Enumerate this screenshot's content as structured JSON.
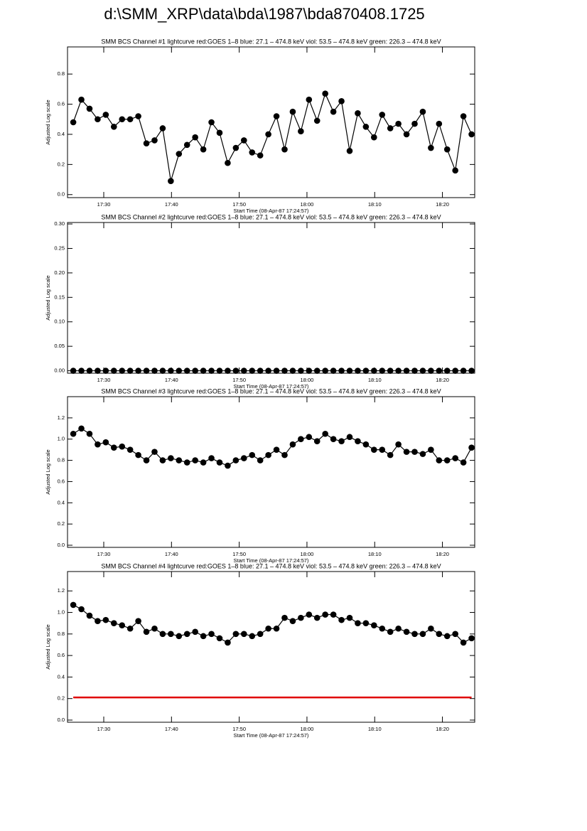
{
  "title": "d:\\SMM_XRP\\data\\bda\\1987\\bda870408.1725",
  "chart_data": [
    {
      "type": "line",
      "title": "SMM BCS Channel #1 lightcurve  red:GOES 1–8  blue: 27.1 – 474.8 keV  viol: 53.5 – 474.8 keV  green: 226.3 – 474.8 keV",
      "xlabel": "Start Time (08-Apr-87 17:24:57)",
      "ylabel": "Adjusted Log scale",
      "x": [
        "17:25:30",
        "17:26:42",
        "17:27:54",
        "17:29:06",
        "17:30:18",
        "17:31:30",
        "17:32:42",
        "17:33:54",
        "17:35:06",
        "17:36:18",
        "17:37:30",
        "17:38:42",
        "17:39:54",
        "17:41:06",
        "17:42:18",
        "17:43:30",
        "17:44:42",
        "17:45:54",
        "17:47:06",
        "17:48:18",
        "17:49:30",
        "17:50:42",
        "17:51:54",
        "17:53:06",
        "17:54:18",
        "17:55:30",
        "17:56:42",
        "17:57:54",
        "17:59:06",
        "18:00:18",
        "18:01:30",
        "18:02:42",
        "18:03:54",
        "18:05:06",
        "18:06:18",
        "18:07:30",
        "18:08:42",
        "18:09:54",
        "18:11:06",
        "18:12:18",
        "18:13:30",
        "18:14:42",
        "18:15:54",
        "18:17:06",
        "18:18:18",
        "18:19:30",
        "18:20:42",
        "18:21:54",
        "18:23:06",
        "18:24:18"
      ],
      "series": [
        {
          "color": "#000000",
          "marker": true,
          "values": [
            0.48,
            0.63,
            0.57,
            0.5,
            0.53,
            0.45,
            0.5,
            0.5,
            0.52,
            0.34,
            0.36,
            0.44,
            0.09,
            0.27,
            0.33,
            0.38,
            0.3,
            0.48,
            0.41,
            0.21,
            0.31,
            0.36,
            0.28,
            0.26,
            0.4,
            0.52,
            0.3,
            0.55,
            0.42,
            0.63,
            0.49,
            0.67,
            0.55,
            0.62,
            0.29,
            0.54,
            0.45,
            0.38,
            0.53,
            0.44,
            0.47,
            0.4,
            0.47,
            0.55,
            0.31,
            0.47,
            0.3,
            0.16,
            0.52,
            0.4
          ]
        }
      ],
      "xlim": [
        "17:24:39",
        "18:24:46"
      ],
      "xticks": [
        "17:30",
        "17:40",
        "17:50",
        "18:00",
        "18:10",
        "18:20"
      ],
      "ylim": [
        -0.02,
        0.98
      ],
      "yticks": [
        {
          "value": 0,
          "label": "0.0"
        },
        0.2,
        0.4,
        0.6,
        0.8
      ]
    },
    {
      "type": "line",
      "title": "SMM BCS Channel #2 lightcurve  red:GOES 1–8  blue: 27.1 – 474.8 keV  viol: 53.5 – 474.8 keV  green: 226.3 – 474.8 keV",
      "xlabel": "Start Time (08-Apr-87 17:24:57)",
      "ylabel": "Adjusted Log scale",
      "x": [
        "17:25:30",
        "17:26:42",
        "17:27:54",
        "17:29:06",
        "17:30:18",
        "17:31:30",
        "17:32:42",
        "17:33:54",
        "17:35:06",
        "17:36:18",
        "17:37:30",
        "17:38:42",
        "17:39:54",
        "17:41:06",
        "17:42:18",
        "17:43:30",
        "17:44:42",
        "17:45:54",
        "17:47:06",
        "17:48:18",
        "17:49:30",
        "17:50:42",
        "17:51:54",
        "17:53:06",
        "17:54:18",
        "17:55:30",
        "17:56:42",
        "17:57:54",
        "17:59:06",
        "18:00:18",
        "18:01:30",
        "18:02:42",
        "18:03:54",
        "18:05:06",
        "18:06:18",
        "18:07:30",
        "18:08:42",
        "18:09:54",
        "18:11:06",
        "18:12:18",
        "18:13:30",
        "18:14:42",
        "18:15:54",
        "18:17:06",
        "18:18:18",
        "18:19:30",
        "18:20:42",
        "18:21:54",
        "18:23:06",
        "18:24:18"
      ],
      "series": [
        {
          "color": "#000000",
          "marker": true,
          "values": [
            0,
            0,
            0,
            0,
            0,
            0,
            0,
            0,
            0,
            0,
            0,
            0,
            0,
            0,
            0,
            0,
            0,
            0,
            0,
            0,
            0,
            0,
            0,
            0,
            0,
            0,
            0,
            0,
            0,
            0,
            0,
            0,
            0,
            0,
            0,
            0,
            0,
            0,
            0,
            0,
            0,
            0,
            0,
            0,
            0,
            0,
            0,
            0,
            0,
            0
          ]
        }
      ],
      "xlim": [
        "17:24:39",
        "18:24:46"
      ],
      "xticks": [
        "17:30",
        "17:40",
        "17:50",
        "18:00",
        "18:10",
        "18:20"
      ],
      "ylim": [
        -0.005,
        0.303
      ],
      "yticks": [
        {
          "value": 0,
          "label": "0.00"
        },
        0.05,
        {
          "value": 0.1,
          "label": "0.10"
        },
        0.15,
        {
          "value": 0.2,
          "label": "0.20"
        },
        0.25,
        {
          "value": 0.3,
          "label": "0.30"
        }
      ]
    },
    {
      "type": "line",
      "title": "SMM BCS Channel #3 lightcurve  red:GOES 1–8  blue: 27.1 – 474.8 keV  viol: 53.5 – 474.8 keV  green: 226.3 – 474.8 keV",
      "xlabel": "Start Time (08-Apr-87 17:24:57)",
      "ylabel": "Adjusted Log scale",
      "x": [
        "17:25:30",
        "17:26:42",
        "17:27:54",
        "17:29:06",
        "17:30:18",
        "17:31:30",
        "17:32:42",
        "17:33:54",
        "17:35:06",
        "17:36:18",
        "17:37:30",
        "17:38:42",
        "17:39:54",
        "17:41:06",
        "17:42:18",
        "17:43:30",
        "17:44:42",
        "17:45:54",
        "17:47:06",
        "17:48:18",
        "17:49:30",
        "17:50:42",
        "17:51:54",
        "17:53:06",
        "17:54:18",
        "17:55:30",
        "17:56:42",
        "17:57:54",
        "17:59:06",
        "18:00:18",
        "18:01:30",
        "18:02:42",
        "18:03:54",
        "18:05:06",
        "18:06:18",
        "18:07:30",
        "18:08:42",
        "18:09:54",
        "18:11:06",
        "18:12:18",
        "18:13:30",
        "18:14:42",
        "18:15:54",
        "18:17:06",
        "18:18:18",
        "18:19:30",
        "18:20:42",
        "18:21:54",
        "18:23:06",
        "18:24:18"
      ],
      "series": [
        {
          "color": "#000000",
          "marker": true,
          "values": [
            1.05,
            1.1,
            1.05,
            0.95,
            0.97,
            0.92,
            0.93,
            0.9,
            0.85,
            0.8,
            0.88,
            0.8,
            0.82,
            0.8,
            0.78,
            0.8,
            0.78,
            0.82,
            0.78,
            0.75,
            0.8,
            0.82,
            0.85,
            0.8,
            0.85,
            0.9,
            0.85,
            0.95,
            1.0,
            1.02,
            0.98,
            1.05,
            1.0,
            0.98,
            1.02,
            0.98,
            0.95,
            0.9,
            0.9,
            0.85,
            0.95,
            0.88,
            0.88,
            0.86,
            0.9,
            0.8,
            0.8,
            0.82,
            0.78,
            0.92
          ]
        }
      ],
      "xlim": [
        "17:24:39",
        "18:24:46"
      ],
      "xticks": [
        "17:30",
        "17:40",
        "17:50",
        "18:00",
        "18:10",
        "18:20"
      ],
      "ylim": [
        -0.02,
        1.4
      ],
      "yticks": [
        {
          "value": 0,
          "label": "0.0"
        },
        0.2,
        0.4,
        0.6,
        0.8,
        {
          "value": 1,
          "label": "1.0"
        },
        1.2
      ]
    },
    {
      "type": "line",
      "title": "SMM BCS Channel #4 lightcurve  red:GOES 1–8  blue: 27.1 – 474.8 keV  viol: 53.5 – 474.8 keV  green: 226.3 – 474.8 keV",
      "xlabel": "Start Time (08-Apr-87 17:24:57)",
      "ylabel": "Adjusted Log scale",
      "x": [
        "17:25:30",
        "17:26:42",
        "17:27:54",
        "17:29:06",
        "17:30:18",
        "17:31:30",
        "17:32:42",
        "17:33:54",
        "17:35:06",
        "17:36:18",
        "17:37:30",
        "17:38:42",
        "17:39:54",
        "17:41:06",
        "17:42:18",
        "17:43:30",
        "17:44:42",
        "17:45:54",
        "17:47:06",
        "17:48:18",
        "17:49:30",
        "17:50:42",
        "17:51:54",
        "17:53:06",
        "17:54:18",
        "17:55:30",
        "17:56:42",
        "17:57:54",
        "17:59:06",
        "18:00:18",
        "18:01:30",
        "18:02:42",
        "18:03:54",
        "18:05:06",
        "18:06:18",
        "18:07:30",
        "18:08:42",
        "18:09:54",
        "18:11:06",
        "18:12:18",
        "18:13:30",
        "18:14:42",
        "18:15:54",
        "18:17:06",
        "18:18:18",
        "18:19:30",
        "18:20:42",
        "18:21:54",
        "18:23:06",
        "18:24:18"
      ],
      "series": [
        {
          "color": "#000000",
          "marker": true,
          "values": [
            1.07,
            1.03,
            0.97,
            0.92,
            0.93,
            0.9,
            0.88,
            0.85,
            0.92,
            0.82,
            0.85,
            0.8,
            0.8,
            0.78,
            0.8,
            0.82,
            0.78,
            0.8,
            0.76,
            0.72,
            0.8,
            0.8,
            0.78,
            0.8,
            0.85,
            0.85,
            0.95,
            0.92,
            0.95,
            0.98,
            0.95,
            0.98,
            0.98,
            0.93,
            0.95,
            0.9,
            0.9,
            0.88,
            0.85,
            0.82,
            0.85,
            0.82,
            0.8,
            0.8,
            0.85,
            0.8,
            0.78,
            0.8,
            0.72,
            0.76
          ]
        },
        {
          "color": "#e00000",
          "marker": false,
          "values": [
            0.21,
            0.21,
            0.21,
            0.21,
            0.21,
            0.21,
            0.21,
            0.21,
            0.21,
            0.21,
            0.21,
            0.21,
            0.21,
            0.21,
            0.21,
            0.21,
            0.21,
            0.21,
            0.21,
            0.21,
            0.21,
            0.21,
            0.21,
            0.21,
            0.21,
            0.21,
            0.21,
            0.21,
            0.21,
            0.21,
            0.21,
            0.21,
            0.21,
            0.21,
            0.21,
            0.21,
            0.21,
            0.21,
            0.21,
            0.21,
            0.21,
            0.21,
            0.21,
            0.21,
            0.21,
            0.21,
            0.21,
            0.21,
            0.21,
            0.21
          ]
        }
      ],
      "xlim": [
        "17:24:39",
        "18:24:46"
      ],
      "xticks": [
        "17:30",
        "17:40",
        "17:50",
        "18:00",
        "18:10",
        "18:20"
      ],
      "ylim": [
        -0.02,
        1.38
      ],
      "yticks": [
        {
          "value": 0,
          "label": "0.0"
        },
        0.2,
        0.4,
        0.6,
        0.8,
        {
          "value": 1,
          "label": "1.0"
        },
        1.2
      ]
    }
  ]
}
